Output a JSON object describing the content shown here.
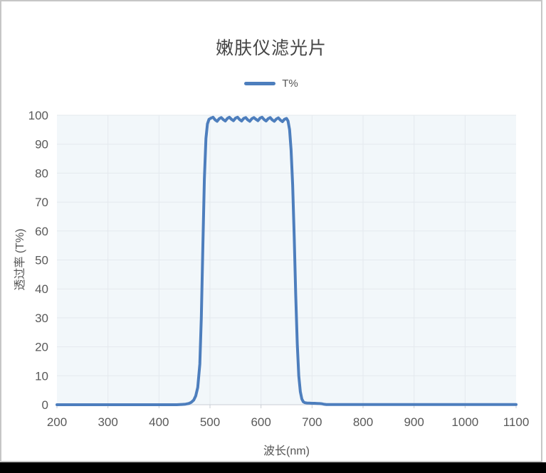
{
  "chart": {
    "title": "嫩肤仪滤光片",
    "legend_label": "T%",
    "x_title": "波长(nm)",
    "y_title": "透过率 (T%)"
  },
  "colors": {
    "line": "#4d7ebd",
    "plot_bg": "#f2f7fa",
    "grid": "#e4e9ee",
    "axis": "#c9ced4",
    "tick_text": "#595959",
    "title_text": "#454545",
    "frame_border": "#c6c6c6",
    "bottom_bar": "#000000"
  },
  "chart_data": {
    "type": "line",
    "title": "嫩肤仪滤光片",
    "xlabel": "波长(nm)",
    "ylabel": "透过率 (T%)",
    "xlim": [
      200,
      1100
    ],
    "ylim": [
      0,
      100
    ],
    "x_ticks": [
      200,
      300,
      400,
      500,
      600,
      700,
      800,
      900,
      1000,
      1100
    ],
    "y_ticks": [
      0,
      10,
      20,
      30,
      40,
      50,
      60,
      70,
      80,
      90,
      100
    ],
    "grid": true,
    "legend_position": "top",
    "series": [
      {
        "name": "T%",
        "color": "#4d7ebd",
        "points": [
          [
            200,
            0
          ],
          [
            220,
            0
          ],
          [
            240,
            0
          ],
          [
            260,
            0
          ],
          [
            280,
            0
          ],
          [
            300,
            0
          ],
          [
            320,
            0
          ],
          [
            340,
            0
          ],
          [
            360,
            0
          ],
          [
            380,
            0
          ],
          [
            400,
            0
          ],
          [
            420,
            0
          ],
          [
            435,
            0
          ],
          [
            445,
            0.1
          ],
          [
            452,
            0.2
          ],
          [
            458,
            0.4
          ],
          [
            463,
            0.8
          ],
          [
            468,
            1.6
          ],
          [
            472,
            3
          ],
          [
            476,
            6
          ],
          [
            480,
            14
          ],
          [
            483,
            30
          ],
          [
            486,
            55
          ],
          [
            489,
            78
          ],
          [
            492,
            92
          ],
          [
            495,
            97
          ],
          [
            498,
            98.6
          ],
          [
            502,
            99.0
          ],
          [
            506,
            99.3
          ],
          [
            510,
            98.4
          ],
          [
            514,
            97.9
          ],
          [
            518,
            98.8
          ],
          [
            522,
            99.2
          ],
          [
            526,
            98.5
          ],
          [
            530,
            98.0
          ],
          [
            534,
            98.9
          ],
          [
            538,
            99.3
          ],
          [
            542,
            98.6
          ],
          [
            546,
            98.1
          ],
          [
            550,
            99.0
          ],
          [
            554,
            99.3
          ],
          [
            558,
            98.5
          ],
          [
            562,
            98.0
          ],
          [
            566,
            98.9
          ],
          [
            570,
            99.2
          ],
          [
            574,
            98.4
          ],
          [
            578,
            97.9
          ],
          [
            582,
            98.8
          ],
          [
            586,
            99.2
          ],
          [
            590,
            98.6
          ],
          [
            594,
            98.1
          ],
          [
            598,
            99.0
          ],
          [
            602,
            99.3
          ],
          [
            606,
            98.5
          ],
          [
            610,
            98.0
          ],
          [
            614,
            98.8
          ],
          [
            618,
            99.2
          ],
          [
            622,
            98.4
          ],
          [
            626,
            97.9
          ],
          [
            630,
            98.7
          ],
          [
            634,
            99.1
          ],
          [
            638,
            98.3
          ],
          [
            642,
            97.8
          ],
          [
            646,
            98.6
          ],
          [
            650,
            98.9
          ],
          [
            653,
            98.0
          ],
          [
            656,
            95
          ],
          [
            659,
            88
          ],
          [
            662,
            76
          ],
          [
            665,
            58
          ],
          [
            668,
            38
          ],
          [
            671,
            21
          ],
          [
            674,
            10
          ],
          [
            677,
            4.5
          ],
          [
            680,
            2
          ],
          [
            683,
            1.0
          ],
          [
            686,
            0.7
          ],
          [
            690,
            0.6
          ],
          [
            695,
            0.55
          ],
          [
            700,
            0.5
          ],
          [
            705,
            0.5
          ],
          [
            710,
            0.45
          ],
          [
            715,
            0.4
          ],
          [
            720,
            0.3
          ],
          [
            724,
            0.15
          ],
          [
            728,
            0.08
          ],
          [
            735,
            0.05
          ],
          [
            750,
            0.05
          ],
          [
            775,
            0.05
          ],
          [
            800,
            0.05
          ],
          [
            825,
            0.05
          ],
          [
            850,
            0.05
          ],
          [
            875,
            0.05
          ],
          [
            900,
            0.05
          ],
          [
            925,
            0.05
          ],
          [
            950,
            0.05
          ],
          [
            975,
            0.05
          ],
          [
            1000,
            0.05
          ],
          [
            1025,
            0.05
          ],
          [
            1050,
            0.05
          ],
          [
            1075,
            0.05
          ],
          [
            1100,
            0.05
          ]
        ]
      }
    ]
  }
}
